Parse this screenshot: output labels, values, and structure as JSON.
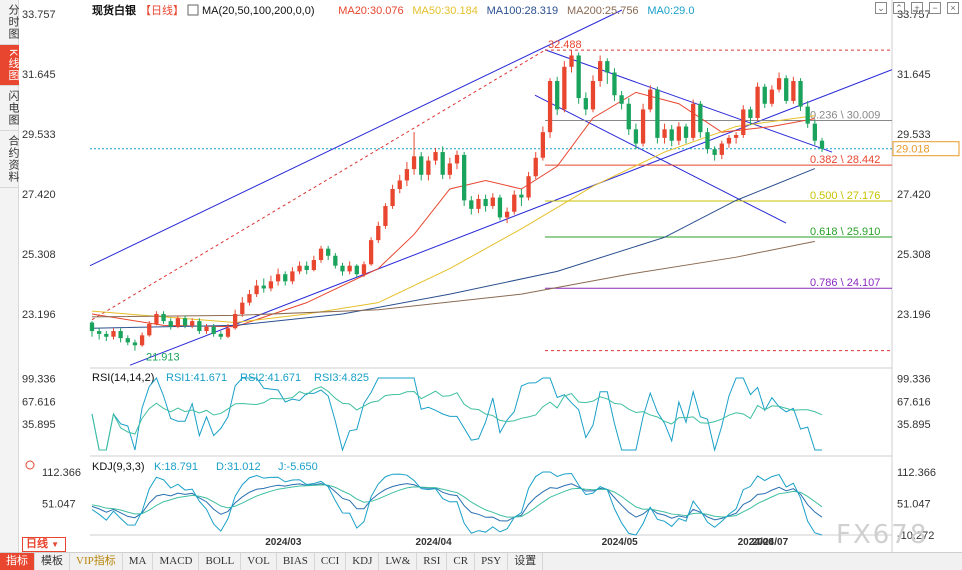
{
  "side_tabs": [
    {
      "label": "分时图",
      "active": false
    },
    {
      "label": "K线图",
      "active": true
    },
    {
      "label": "闪电图",
      "active": false
    },
    {
      "label": "合约资料",
      "active": false
    }
  ],
  "header": {
    "instrument": "现货白银",
    "period": "【日线】",
    "ma_label": "MA(20,50,100,200,0,0)",
    "ma_values": [
      {
        "text": "MA20:30.076",
        "color": "#e8462f"
      },
      {
        "text": "MA50:30.184",
        "color": "#e6c02a"
      },
      {
        "text": "MA100:28.319",
        "color": "#2a4f8f"
      },
      {
        "text": "MA200:25.756",
        "color": "#8a6a52"
      },
      {
        "text": "MA0:29.0",
        "color": "#1aa0c8"
      }
    ]
  },
  "toolbar_icons": [
    "chevron-down-icon",
    "chevron-up-icon",
    "plus-icon",
    "minus-icon",
    "close-icon"
  ],
  "chart_data": {
    "type": "candlestick",
    "price_axis": {
      "ticks": [
        "33.757",
        "31.645",
        "29.533",
        "27.420",
        "25.308",
        "23.196"
      ],
      "range": [
        21.3,
        33.9
      ]
    },
    "current_price": "29.018",
    "date_labels": [
      "2024/03",
      "2024/04",
      "2024/05",
      "2024/06",
      "2024/07"
    ],
    "annotations": {
      "high": "32.488",
      "low": "21.913"
    },
    "candles": [
      [
        22.9,
        22.6,
        22.95,
        22.4
      ],
      [
        22.6,
        22.5,
        22.7,
        22.3
      ],
      [
        22.5,
        22.4,
        22.6,
        22.25
      ],
      [
        22.4,
        22.6,
        22.7,
        22.3
      ],
      [
        22.6,
        22.35,
        22.7,
        22.2
      ],
      [
        22.35,
        22.2,
        22.45,
        22.1
      ],
      [
        22.2,
        22.1,
        22.3,
        21.91
      ],
      [
        22.1,
        22.45,
        22.55,
        22.05
      ],
      [
        22.45,
        22.85,
        22.95,
        22.4
      ],
      [
        22.85,
        23.2,
        23.3,
        22.8
      ],
      [
        23.2,
        22.95,
        23.3,
        22.85
      ],
      [
        22.95,
        22.75,
        23.05,
        22.65
      ],
      [
        22.75,
        23.05,
        23.15,
        22.7
      ],
      [
        23.05,
        22.8,
        23.15,
        22.7
      ],
      [
        22.8,
        22.95,
        23.05,
        22.7
      ],
      [
        22.95,
        22.6,
        23.05,
        22.5
      ],
      [
        22.6,
        22.75,
        22.85,
        22.5
      ],
      [
        22.75,
        22.5,
        22.85,
        22.4
      ],
      [
        22.5,
        22.4,
        22.6,
        22.3
      ],
      [
        22.4,
        22.7,
        22.85,
        22.35
      ],
      [
        22.7,
        23.2,
        23.35,
        22.65
      ],
      [
        23.2,
        23.6,
        23.8,
        23.1
      ],
      [
        23.6,
        23.9,
        24.05,
        23.5
      ],
      [
        23.9,
        24.2,
        24.4,
        23.8
      ],
      [
        24.2,
        24.1,
        24.45,
        23.95
      ],
      [
        24.1,
        24.35,
        24.55,
        24.0
      ],
      [
        24.35,
        24.6,
        24.8,
        24.2
      ],
      [
        24.6,
        24.35,
        24.7,
        24.2
      ],
      [
        24.35,
        24.7,
        24.85,
        24.25
      ],
      [
        24.7,
        24.9,
        25.05,
        24.6
      ],
      [
        24.9,
        24.75,
        25.05,
        24.6
      ],
      [
        24.75,
        25.1,
        25.25,
        24.7
      ],
      [
        25.1,
        25.5,
        25.6,
        25.0
      ],
      [
        25.5,
        25.25,
        25.6,
        25.1
      ],
      [
        25.25,
        24.9,
        25.35,
        24.8
      ],
      [
        24.9,
        24.7,
        25.0,
        24.55
      ],
      [
        24.7,
        24.9,
        25.05,
        24.6
      ],
      [
        24.9,
        24.6,
        24.95,
        24.5
      ],
      [
        24.6,
        24.95,
        25.05,
        24.5
      ],
      [
        24.95,
        25.8,
        25.9,
        24.9
      ],
      [
        25.8,
        26.3,
        26.45,
        25.7
      ],
      [
        26.3,
        27.0,
        27.1,
        26.2
      ],
      [
        27.0,
        27.6,
        27.75,
        26.9
      ],
      [
        27.6,
        27.9,
        28.1,
        27.45
      ],
      [
        27.9,
        28.3,
        28.55,
        27.7
      ],
      [
        28.3,
        28.75,
        29.6,
        28.1
      ],
      [
        28.75,
        28.1,
        28.9,
        27.9
      ],
      [
        28.1,
        28.6,
        28.75,
        27.9
      ],
      [
        28.6,
        28.9,
        29.05,
        28.45
      ],
      [
        28.9,
        28.1,
        29.1,
        27.95
      ],
      [
        28.1,
        28.5,
        28.7,
        27.95
      ],
      [
        28.5,
        28.8,
        28.95,
        28.3
      ],
      [
        28.8,
        27.2,
        28.9,
        27.0
      ],
      [
        27.2,
        26.9,
        27.35,
        26.7
      ],
      [
        26.9,
        27.25,
        27.4,
        26.75
      ],
      [
        27.25,
        27.0,
        27.4,
        26.8
      ],
      [
        27.0,
        27.3,
        27.45,
        26.9
      ],
      [
        27.3,
        26.6,
        27.4,
        26.5
      ],
      [
        26.6,
        26.8,
        26.95,
        26.4
      ],
      [
        26.8,
        27.4,
        27.55,
        26.7
      ],
      [
        27.4,
        27.3,
        27.6,
        27.0
      ],
      [
        27.3,
        28.05,
        28.2,
        27.2
      ],
      [
        28.05,
        28.7,
        28.9,
        27.95
      ],
      [
        28.7,
        29.6,
        29.8,
        28.6
      ],
      [
        29.6,
        31.4,
        31.5,
        29.4
      ],
      [
        31.4,
        30.4,
        31.55,
        30.2
      ],
      [
        30.4,
        31.9,
        32.1,
        30.3
      ],
      [
        31.9,
        32.3,
        32.488,
        31.7
      ],
      [
        32.3,
        30.8,
        32.4,
        30.6
      ],
      [
        30.8,
        30.4,
        31.0,
        30.2
      ],
      [
        30.4,
        31.4,
        31.6,
        30.3
      ],
      [
        31.4,
        32.1,
        32.3,
        31.2
      ],
      [
        32.1,
        31.7,
        32.2,
        31.3
      ],
      [
        31.7,
        30.9,
        31.85,
        30.7
      ],
      [
        30.9,
        30.6,
        31.05,
        30.4
      ],
      [
        30.6,
        29.7,
        30.8,
        29.5
      ],
      [
        29.7,
        29.2,
        29.9,
        29.0
      ],
      [
        29.2,
        30.4,
        30.6,
        29.1
      ],
      [
        30.4,
        31.1,
        31.25,
        30.3
      ],
      [
        31.1,
        29.4,
        31.2,
        29.2
      ],
      [
        29.4,
        29.7,
        29.9,
        29.2
      ],
      [
        29.7,
        29.3,
        29.85,
        29.1
      ],
      [
        29.3,
        29.8,
        29.95,
        29.15
      ],
      [
        29.8,
        29.4,
        29.9,
        29.2
      ],
      [
        29.4,
        30.6,
        30.75,
        29.3
      ],
      [
        30.6,
        29.6,
        30.7,
        29.4
      ],
      [
        29.6,
        29.0,
        29.75,
        28.85
      ],
      [
        29.0,
        28.8,
        29.1,
        28.6
      ],
      [
        28.8,
        29.2,
        29.3,
        28.65
      ],
      [
        29.2,
        29.4,
        29.5,
        29.05
      ],
      [
        29.4,
        29.5,
        29.6,
        29.2
      ],
      [
        29.5,
        30.4,
        30.55,
        29.4
      ],
      [
        30.4,
        30.1,
        30.5,
        29.85
      ],
      [
        30.1,
        31.2,
        31.35,
        30.0
      ],
      [
        31.2,
        30.6,
        31.3,
        30.45
      ],
      [
        30.6,
        31.1,
        31.25,
        30.5
      ],
      [
        31.1,
        31.5,
        31.7,
        31.0
      ],
      [
        31.5,
        30.7,
        31.6,
        30.6
      ],
      [
        30.7,
        31.4,
        31.55,
        30.6
      ],
      [
        31.4,
        30.5,
        31.5,
        30.35
      ],
      [
        30.5,
        29.9,
        30.7,
        29.75
      ],
      [
        29.9,
        29.3,
        30.05,
        29.15
      ],
      [
        29.3,
        29.018,
        29.4,
        28.9
      ]
    ],
    "moving_averages": [
      {
        "name": "MA20",
        "color": "#e8462f",
        "points": [
          [
            0,
            23.2
          ],
          [
            10,
            22.8
          ],
          [
            20,
            22.75
          ],
          [
            30,
            23.6
          ],
          [
            40,
            24.8
          ],
          [
            45,
            26.0
          ],
          [
            50,
            27.6
          ],
          [
            55,
            27.9
          ],
          [
            60,
            27.6
          ],
          [
            65,
            28.4
          ],
          [
            70,
            30.1
          ],
          [
            76,
            31.0
          ],
          [
            82,
            30.6
          ],
          [
            88,
            29.6
          ],
          [
            95,
            29.8
          ],
          [
            101,
            30.076
          ]
        ]
      },
      {
        "name": "MA50",
        "color": "#e6c02a",
        "points": [
          [
            0,
            23.3
          ],
          [
            10,
            23.1
          ],
          [
            20,
            22.9
          ],
          [
            30,
            23.2
          ],
          [
            40,
            23.6
          ],
          [
            50,
            24.8
          ],
          [
            60,
            26.2
          ],
          [
            70,
            27.7
          ],
          [
            80,
            28.9
          ],
          [
            90,
            29.8
          ],
          [
            101,
            30.184
          ]
        ]
      },
      {
        "name": "MA100",
        "color": "#2a4f8f",
        "points": [
          [
            0,
            22.7
          ],
          [
            20,
            22.8
          ],
          [
            35,
            23.2
          ],
          [
            50,
            23.9
          ],
          [
            65,
            24.7
          ],
          [
            80,
            25.9
          ],
          [
            90,
            27.2
          ],
          [
            101,
            28.319
          ]
        ]
      },
      {
        "name": "MA200",
        "color": "#8a6a52",
        "points": [
          [
            0,
            23.1
          ],
          [
            20,
            23.15
          ],
          [
            40,
            23.35
          ],
          [
            60,
            23.9
          ],
          [
            75,
            24.6
          ],
          [
            90,
            25.2
          ],
          [
            101,
            25.756
          ]
        ]
      }
    ],
    "fibonacci": [
      {
        "ratio": "0.236",
        "value": "30.009",
        "color": "#888888"
      },
      {
        "ratio": "0.382",
        "value": "28.442",
        "color": "#e8462f"
      },
      {
        "ratio": "0.500",
        "value": "27.176",
        "color": "#c9c200"
      },
      {
        "ratio": "0.618",
        "value": "25.910",
        "color": "#2aa02a"
      },
      {
        "ratio": "0.786",
        "value": "24.107",
        "color": "#8a2ac0"
      }
    ]
  },
  "rsi": {
    "label": "RSI(14,14,2)",
    "values": [
      {
        "text": "RSI1:41.671",
        "color": "#1aa0c8"
      },
      {
        "text": "RSI2:41.671",
        "color": "#1aa0c8"
      },
      {
        "text": "RSI3:4.825",
        "color": "#1aa0c8"
      }
    ],
    "ticks": [
      "99.336",
      "67.616",
      "35.895"
    ]
  },
  "kdj": {
    "label": "KDJ(9,3,3)",
    "values": [
      {
        "text": "K:18.791",
        "color": "#1aa0c8"
      },
      {
        "text": "D:31.012",
        "color": "#1aa0c8"
      },
      {
        "text": "J:-5.650",
        "color": "#1aa0c8"
      }
    ],
    "ticks": [
      "112.366",
      "51.047",
      "-10.272"
    ]
  },
  "period_tag": "日线",
  "bottom_bar": [
    "指标",
    "模板",
    "VIP指标",
    "MA",
    "MACD",
    "BOLL",
    "VOL",
    "BIAS",
    "CCI",
    "KDJ",
    "LW&",
    "RSI",
    "CR",
    "PSY",
    "设置"
  ],
  "watermark": "FX678"
}
